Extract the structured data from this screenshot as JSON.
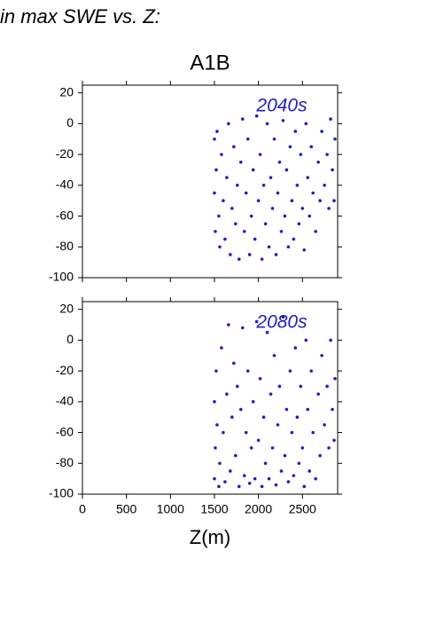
{
  "page_title": "in max SWE vs. Z:",
  "chart_data": [
    {
      "type": "scatter",
      "title": "A1B",
      "annotation": "2040s",
      "xlim": [
        0,
        2900
      ],
      "ylim": [
        -100,
        25
      ],
      "yticks": [
        -100,
        -80,
        -60,
        -40,
        -20,
        0,
        20
      ],
      "series": [
        {
          "color": "#2020c0",
          "x": [
            1500,
            1500,
            1510,
            1520,
            1530,
            1550,
            1560,
            1580,
            1600,
            1620,
            1640,
            1660,
            1680,
            1700,
            1720,
            1740,
            1760,
            1780,
            1800,
            1820,
            1840,
            1860,
            1880,
            1900,
            1920,
            1940,
            1960,
            1980,
            2000,
            2020,
            2040,
            2060,
            2080,
            2100,
            2120,
            2140,
            2160,
            2180,
            2200,
            2220,
            2240,
            2260,
            2280,
            2300,
            2320,
            2340,
            2360,
            2380,
            2400,
            2420,
            2440,
            2460,
            2480,
            2500,
            2520,
            2540,
            2560,
            2580,
            2600,
            2620,
            2650,
            2680,
            2700,
            2720,
            2750,
            2780,
            2800,
            2820,
            2840,
            2860,
            2870
          ],
          "values": [
            -10,
            -45,
            -70,
            -30,
            -5,
            -60,
            -80,
            -20,
            -50,
            -75,
            -35,
            0,
            -85,
            -55,
            -15,
            -65,
            -40,
            -88,
            -25,
            3,
            -70,
            -45,
            -10,
            -85,
            -60,
            -30,
            -75,
            5,
            -50,
            -20,
            -88,
            -40,
            -65,
            0,
            -80,
            -35,
            -55,
            -10,
            -85,
            -45,
            -25,
            -70,
            2,
            -60,
            -30,
            -80,
            -15,
            -50,
            -75,
            -5,
            -40,
            -65,
            -20,
            -55,
            -82,
            0,
            -35,
            -60,
            -15,
            -45,
            -70,
            -25,
            -50,
            -5,
            -40,
            -20,
            -55,
            3,
            -30,
            -50,
            -10
          ]
        }
      ]
    },
    {
      "type": "scatter",
      "annotation": "2080s",
      "xlabel": "Z(m)",
      "xlim": [
        0,
        2900
      ],
      "ylim": [
        -100,
        25
      ],
      "yticks": [
        -100,
        -80,
        -60,
        -40,
        -20,
        0,
        20
      ],
      "xticks": [
        0,
        500,
        1000,
        1500,
        2000,
        2500
      ],
      "series": [
        {
          "color": "#2020c0",
          "x": [
            1500,
            1500,
            1510,
            1520,
            1530,
            1550,
            1560,
            1580,
            1600,
            1620,
            1640,
            1660,
            1680,
            1700,
            1720,
            1740,
            1760,
            1780,
            1800,
            1820,
            1840,
            1860,
            1880,
            1900,
            1920,
            1940,
            1960,
            1980,
            2000,
            2020,
            2040,
            2060,
            2080,
            2100,
            2120,
            2140,
            2160,
            2180,
            2200,
            2220,
            2240,
            2260,
            2280,
            2300,
            2320,
            2340,
            2360,
            2380,
            2400,
            2420,
            2440,
            2460,
            2480,
            2500,
            2520,
            2540,
            2560,
            2580,
            2600,
            2620,
            2650,
            2680,
            2700,
            2720,
            2750,
            2780,
            2800,
            2820,
            2840,
            2860,
            2870
          ],
          "values": [
            -40,
            -90,
            -70,
            -20,
            -55,
            -95,
            -80,
            -5,
            -60,
            -92,
            -35,
            10,
            -85,
            -50,
            -15,
            -75,
            -30,
            -95,
            -45,
            8,
            -88,
            -60,
            -20,
            -93,
            -70,
            -40,
            -90,
            12,
            -65,
            -25,
            -95,
            -50,
            -80,
            5,
            -90,
            -35,
            -70,
            -10,
            -94,
            -55,
            -30,
            -85,
            15,
            -75,
            -45,
            -92,
            -20,
            -60,
            -88,
            -5,
            -50,
            -80,
            -30,
            -70,
            -95,
            0,
            -45,
            -85,
            -20,
            -60,
            -90,
            -35,
            -75,
            -10,
            -55,
            -30,
            -70,
            0,
            -45,
            -65,
            -25
          ]
        }
      ]
    }
  ]
}
